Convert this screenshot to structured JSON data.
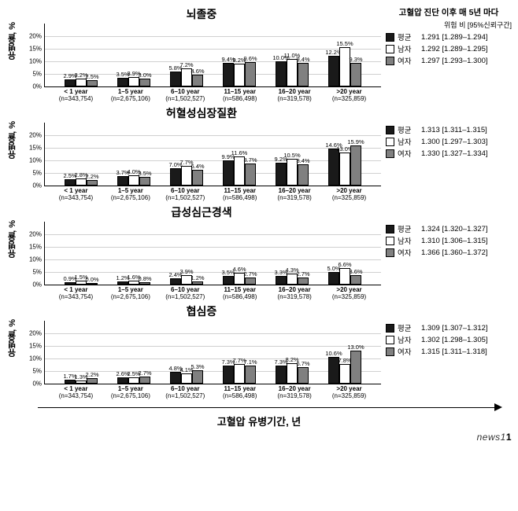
{
  "ylim": 25,
  "yticks": [
    0,
    5,
    10,
    15,
    20
  ],
  "ylabel": "유병율, %",
  "colors": {
    "mean": "#1a1a1a",
    "male": "#ffffff",
    "female": "#808080",
    "grid": "#d0d0d0"
  },
  "grandLegendTitle": "고혈압 진단 이후 매 5년 마다",
  "grandLegendSub": "위험 비 [95%신뢰구간]",
  "categories": [
    {
      "label": "< 1 year",
      "n": "(n=343,754)"
    },
    {
      "label": "1–5 year",
      "n": "(n=2,675,106)"
    },
    {
      "label": "6–10 year",
      "n": "(n=1,502,527)"
    },
    {
      "label": "11–15 year",
      "n": "(n=586,498)"
    },
    {
      "label": "16–20 year",
      "n": "(n=319,578)"
    },
    {
      "label": ">20 year",
      "n": "(n=325,859)"
    }
  ],
  "legendLabels": {
    "mean": "평균",
    "male": "남자",
    "female": "여자"
  },
  "panels": [
    {
      "title": "뇌졸중",
      "data": [
        {
          "mean": 2.9,
          "male": 3.2,
          "female": 2.5
        },
        {
          "mean": 3.5,
          "male": 3.9,
          "female": 3.0
        },
        {
          "mean": 5.8,
          "male": 7.2,
          "female": 4.6
        },
        {
          "mean": 9.4,
          "male": 9.2,
          "female": 9.6
        },
        {
          "mean": 10.0,
          "male": 11.0,
          "female": 9.4
        },
        {
          "mean": 12.2,
          "male": 15.5,
          "female": 9.3
        }
      ],
      "legend": [
        {
          "key": "mean",
          "val": "1.291 [1.289–1.294]"
        },
        {
          "key": "male",
          "val": "1.292 [1.289–1.295]"
        },
        {
          "key": "female",
          "val": "1.297 [1.293–1.300]"
        }
      ],
      "showLegendTitle": true
    },
    {
      "title": "허혈성심장질환",
      "data": [
        {
          "mean": 2.5,
          "male": 2.8,
          "female": 2.2
        },
        {
          "mean": 3.7,
          "male": 4.0,
          "female": 3.5
        },
        {
          "mean": 7.0,
          "male": 7.7,
          "female": 6.4
        },
        {
          "mean": 9.9,
          "male": 11.6,
          "female": 8.7
        },
        {
          "mean": 9.2,
          "male": 10.5,
          "female": 8.4
        },
        {
          "mean": 14.6,
          "male": 13.0,
          "female": 15.9
        }
      ],
      "legend": [
        {
          "key": "mean",
          "val": "1.313 [1.311–1.315]"
        },
        {
          "key": "male",
          "val": "1.300 [1.297–1.303]"
        },
        {
          "key": "female",
          "val": "1.330 [1.327–1.334]"
        }
      ]
    },
    {
      "title": "급성심근경색",
      "data": [
        {
          "mean": 0.9,
          "male": 1.5,
          "female": 0.0
        },
        {
          "mean": 1.2,
          "male": 1.6,
          "female": 0.8
        },
        {
          "mean": 2.4,
          "male": 3.9,
          "female": 1.2
        },
        {
          "mean": 3.5,
          "male": 4.6,
          "female": 2.7
        },
        {
          "mean": 3.3,
          "male": 4.3,
          "female": 2.7
        },
        {
          "mean": 5.0,
          "male": 6.6,
          "female": 3.6
        }
      ],
      "legend": [
        {
          "key": "mean",
          "val": "1.324 [1.320–1.327]"
        },
        {
          "key": "male",
          "val": "1.310 [1.306–1.315]"
        },
        {
          "key": "female",
          "val": "1.366 [1.360–1.372]"
        }
      ]
    },
    {
      "title": "협심증",
      "data": [
        {
          "mean": 1.7,
          "male": 1.3,
          "female": 2.2
        },
        {
          "mean": 2.6,
          "male": 2.5,
          "female": 2.7
        },
        {
          "mean": 4.8,
          "male": 4.1,
          "female": 5.3
        },
        {
          "mean": 7.3,
          "male": 7.7,
          "female": 7.1
        },
        {
          "mean": 7.3,
          "male": 8.2,
          "female": 6.7
        },
        {
          "mean": 10.6,
          "male": 7.8,
          "female": 13.0
        }
      ],
      "legend": [
        {
          "key": "mean",
          "val": "1.309 [1.307–1.312]"
        },
        {
          "key": "male",
          "val": "1.302 [1.298–1.305]"
        },
        {
          "key": "female",
          "val": "1.315 [1.311–1.318]"
        }
      ]
    }
  ],
  "xAxisTitle": "고혈압 유병기간, 년",
  "footer": "news1"
}
